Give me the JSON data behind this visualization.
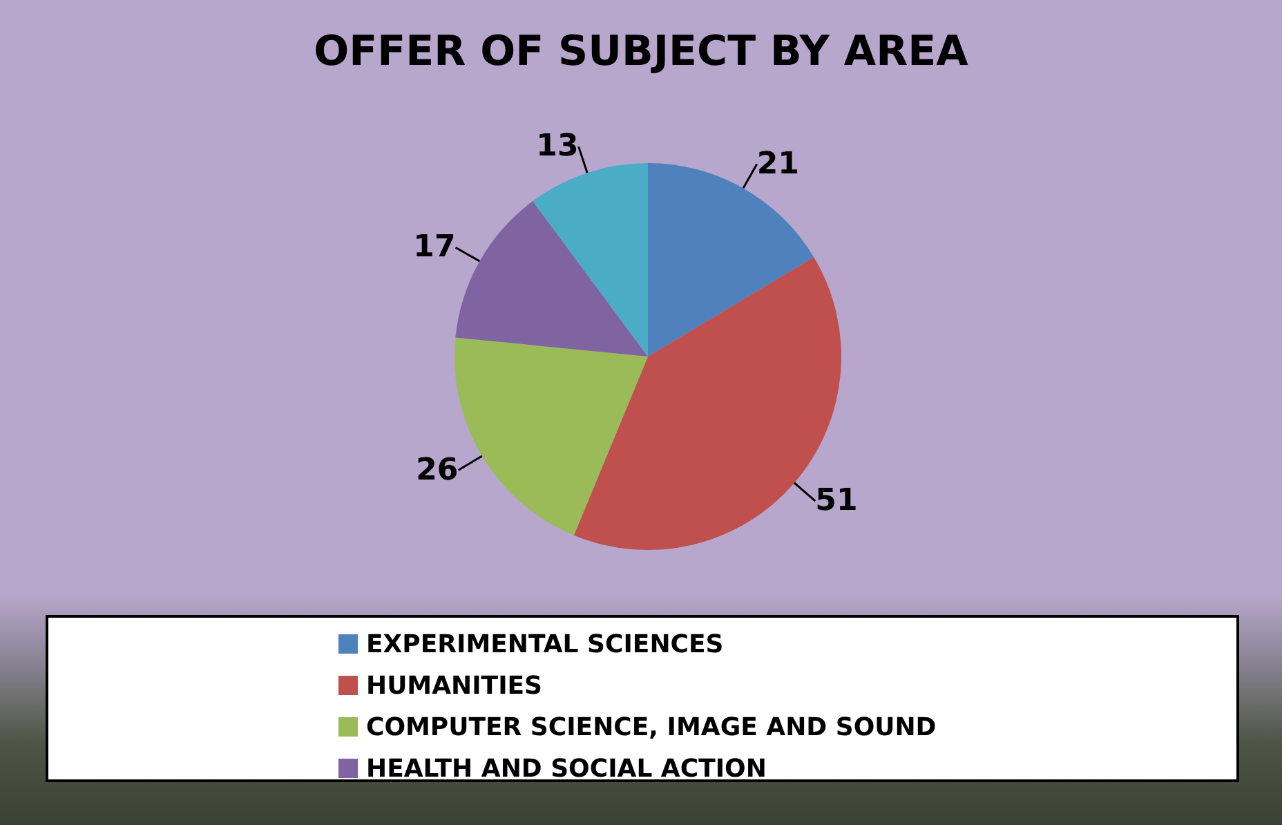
{
  "chart_data": {
    "type": "pie",
    "title": "OFFER OF SUBJECT BY AREA",
    "categories": [
      "EXPERIMENTAL SCIENCES",
      "HUMANITIES",
      "COMPUTER SCIENCE, IMAGE AND SOUND",
      "HEALTH AND SOCIAL ACTION",
      null
    ],
    "values": [
      21,
      51,
      26,
      17,
      13
    ],
    "colors": [
      "#4f81bd",
      "#c0504d",
      "#9bbb59",
      "#8064a2",
      "#4bacc6"
    ],
    "data_labels": true,
    "legend": "bottom"
  }
}
